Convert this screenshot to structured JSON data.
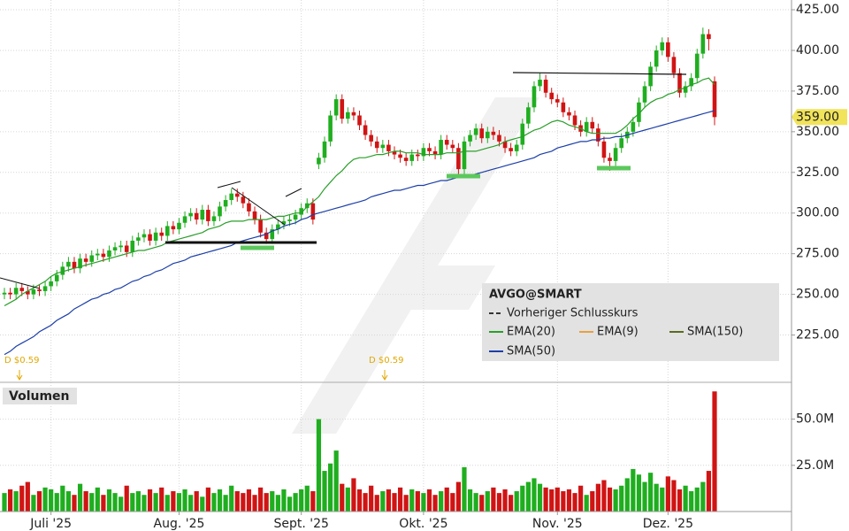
{
  "chart_data": {
    "type": "candlestick",
    "symbol": "AVGO@SMART",
    "categories": [
      null,
      null,
      null,
      null,
      null,
      null,
      null,
      null,
      "Juli '25",
      null,
      null,
      null,
      null,
      null,
      null,
      null,
      null,
      null,
      null,
      null,
      null,
      null,
      null,
      null,
      null,
      null,
      null,
      null,
      null,
      null,
      "Aug. '25",
      null,
      null,
      null,
      null,
      null,
      null,
      null,
      null,
      null,
      null,
      null,
      null,
      null,
      null,
      null,
      null,
      null,
      null,
      null,
      null,
      "Sept. '25",
      null,
      null,
      null,
      null,
      null,
      null,
      null,
      null,
      null,
      null,
      null,
      null,
      null,
      null,
      null,
      null,
      null,
      null,
      null,
      null,
      "Okt. '25",
      null,
      null,
      null,
      null,
      null,
      null,
      null,
      null,
      null,
      null,
      null,
      null,
      null,
      null,
      null,
      null,
      null,
      null,
      null,
      null,
      null,
      null,
      "Nov. '25",
      null,
      null,
      null,
      null,
      null,
      null,
      null,
      null,
      null,
      null,
      null,
      null,
      null,
      null,
      null,
      null,
      null,
      null,
      "Dez. '25",
      null,
      null,
      null,
      null,
      null,
      null,
      null,
      null
    ],
    "open": [
      250,
      251,
      250,
      254,
      252,
      250,
      253,
      252,
      255,
      258,
      262,
      267,
      270,
      266,
      272,
      270,
      274,
      275,
      273,
      277,
      279,
      280,
      276,
      283,
      285,
      287,
      283,
      288,
      286,
      292,
      290,
      294,
      298,
      300,
      296,
      302,
      295,
      298,
      304,
      308,
      312,
      310,
      306,
      301,
      296,
      288,
      284,
      290,
      293,
      295,
      296,
      299,
      303,
      306,
      330,
      334,
      344,
      360,
      370,
      358,
      362,
      360,
      354,
      348,
      344,
      340,
      342,
      338,
      336,
      334,
      332,
      336,
      335,
      340,
      338,
      336,
      345,
      342,
      340,
      327,
      344,
      348,
      352,
      346,
      350,
      348,
      344,
      340,
      338,
      342,
      355,
      365,
      378,
      382,
      374,
      370,
      368,
      362,
      360,
      354,
      350,
      356,
      352,
      344,
      334,
      332,
      340,
      346,
      350,
      356,
      368,
      378,
      390,
      400,
      405,
      396,
      386,
      374,
      378,
      383,
      398,
      410,
      381
    ],
    "high": [
      254,
      254,
      257,
      257,
      255,
      256,
      256,
      258,
      261,
      265,
      270,
      273,
      273,
      275,
      275,
      277,
      278,
      278,
      280,
      282,
      283,
      283,
      286,
      288,
      290,
      290,
      291,
      291,
      295,
      295,
      297,
      301,
      303,
      303,
      305,
      305,
      301,
      307,
      311,
      315,
      315,
      313,
      309,
      304,
      299,
      291,
      293,
      296,
      298,
      299,
      302,
      306,
      309,
      309,
      337,
      347,
      363,
      373,
      373,
      365,
      365,
      363,
      357,
      351,
      347,
      345,
      345,
      341,
      339,
      337,
      339,
      339,
      343,
      343,
      341,
      348,
      348,
      345,
      343,
      347,
      351,
      355,
      355,
      353,
      353,
      351,
      347,
      343,
      345,
      358,
      368,
      381,
      386,
      385,
      377,
      373,
      371,
      365,
      363,
      357,
      359,
      359,
      355,
      347,
      337,
      343,
      349,
      353,
      359,
      371,
      381,
      393,
      403,
      408,
      408,
      399,
      389,
      381,
      386,
      401,
      414,
      413,
      384
    ],
    "low": [
      247,
      247,
      247,
      249,
      247,
      247,
      249,
      249,
      252,
      255,
      259,
      264,
      263,
      263,
      267,
      267,
      271,
      270,
      270,
      274,
      276,
      273,
      273,
      280,
      282,
      280,
      280,
      283,
      283,
      287,
      287,
      291,
      295,
      293,
      293,
      292,
      292,
      295,
      301,
      305,
      307,
      303,
      298,
      293,
      285,
      281,
      281,
      287,
      290,
      292,
      293,
      296,
      300,
      293,
      327,
      331,
      341,
      357,
      355,
      355,
      357,
      351,
      345,
      341,
      337,
      337,
      335,
      333,
      331,
      329,
      329,
      332,
      332,
      335,
      333,
      333,
      339,
      337,
      324,
      324,
      341,
      345,
      343,
      343,
      345,
      341,
      337,
      335,
      335,
      339,
      352,
      362,
      375,
      371,
      367,
      365,
      359,
      357,
      351,
      347,
      347,
      349,
      341,
      331,
      326,
      329,
      337,
      343,
      347,
      353,
      365,
      375,
      387,
      397,
      393,
      383,
      371,
      371,
      375,
      380,
      395,
      400,
      354
    ],
    "close": [
      251,
      250,
      254,
      252,
      250,
      253,
      252,
      255,
      258,
      262,
      267,
      270,
      266,
      272,
      270,
      274,
      275,
      273,
      277,
      279,
      280,
      276,
      283,
      285,
      287,
      283,
      288,
      286,
      292,
      290,
      294,
      298,
      300,
      296,
      302,
      295,
      298,
      304,
      308,
      312,
      310,
      306,
      301,
      296,
      288,
      284,
      290,
      293,
      295,
      296,
      299,
      303,
      306,
      296,
      334,
      344,
      360,
      370,
      358,
      362,
      360,
      354,
      348,
      344,
      340,
      342,
      338,
      336,
      334,
      332,
      336,
      335,
      340,
      338,
      336,
      345,
      342,
      340,
      327,
      344,
      348,
      352,
      346,
      350,
      348,
      344,
      340,
      338,
      342,
      355,
      365,
      378,
      382,
      374,
      370,
      368,
      362,
      360,
      354,
      350,
      356,
      352,
      344,
      334,
      332,
      340,
      346,
      350,
      356,
      368,
      378,
      390,
      400,
      405,
      396,
      386,
      374,
      378,
      383,
      398,
      410,
      407,
      359
    ],
    "color_up": "#1fae1f",
    "color_down": "#d01414",
    "series": [
      {
        "name": "EMA(20)",
        "color": "#2a9e2a",
        "values": [
          243,
          245,
          247,
          250,
          252,
          254,
          256,
          258,
          261,
          263,
          264,
          265,
          266,
          267,
          268,
          269,
          270,
          271,
          272,
          273,
          274,
          275,
          276,
          277,
          277,
          278,
          279,
          280,
          282,
          283,
          284,
          285,
          286,
          287,
          288,
          290,
          291,
          292,
          294,
          295,
          295,
          295,
          296,
          296,
          296,
          296,
          297,
          298,
          298,
          299,
          300,
          300,
          304,
          307,
          310,
          315,
          319,
          323,
          326,
          330,
          333,
          334,
          334,
          335,
          336,
          336,
          337,
          338,
          338,
          337,
          337,
          337,
          336,
          336,
          336,
          336,
          337,
          337,
          337,
          338,
          338,
          338,
          339,
          340,
          341,
          342,
          344,
          345,
          346,
          347,
          349,
          351,
          352,
          354,
          356,
          357,
          356,
          354,
          353,
          352,
          350,
          349,
          349,
          349,
          349,
          349,
          351,
          354,
          358,
          361,
          365,
          368,
          370,
          371,
          373,
          374,
          376,
          377,
          379,
          380,
          382,
          383,
          379
        ]
      },
      {
        "name": "SMA(50)",
        "color": "#1c3fa8",
        "values": [
          213,
          215,
          218,
          220,
          222,
          224,
          227,
          229,
          231,
          234,
          236,
          238,
          241,
          243,
          245,
          247,
          248,
          250,
          251,
          253,
          254,
          256,
          258,
          259,
          261,
          262,
          264,
          265,
          267,
          269,
          270,
          271,
          273,
          274,
          275,
          276,
          277,
          278,
          279,
          280,
          282,
          283,
          284,
          285,
          286,
          287,
          289,
          290,
          292,
          293,
          294,
          296,
          297,
          299,
          300,
          301,
          302,
          303,
          304,
          305,
          306,
          307,
          308,
          310,
          311,
          312,
          313,
          314,
          314,
          315,
          316,
          317,
          317,
          318,
          319,
          320,
          320,
          321,
          322,
          323,
          323,
          324,
          325,
          326,
          327,
          328,
          329,
          330,
          331,
          332,
          333,
          334,
          336,
          337,
          338,
          340,
          341,
          342,
          343,
          344,
          344,
          345,
          345,
          346,
          346,
          347,
          347,
          348,
          349,
          350,
          351,
          352,
          353,
          354,
          355,
          356,
          357,
          358,
          359,
          360,
          361,
          362,
          363
        ]
      }
    ],
    "legend_extra": [
      {
        "name": "Vorheriger Schlusskurs",
        "color": "#333333"
      },
      {
        "name": "EMA(9)",
        "color": "#e8a040"
      },
      {
        "name": "SMA(150)",
        "color": "#5a6b1f"
      }
    ],
    "annotations": [
      "D $0.59",
      "D $0.59"
    ],
    "ylim": [
      197,
      431
    ],
    "yticks": [
      {
        "value": 225,
        "label": "225.00"
      },
      {
        "value": 250,
        "label": "250.00"
      },
      {
        "value": 275,
        "label": "275.00"
      },
      {
        "value": 300,
        "label": "300.00"
      },
      {
        "value": 325,
        "label": "325.00"
      },
      {
        "value": 350,
        "label": "350.00"
      },
      {
        "value": 375,
        "label": "375.00"
      },
      {
        "value": 400,
        "label": "400.00"
      },
      {
        "value": 425,
        "label": "425.00"
      }
    ],
    "last_price": {
      "value": 359,
      "label": "359.00"
    },
    "grid": true,
    "volume": {
      "title": "Volumen",
      "values": [
        10,
        12,
        11,
        14,
        16,
        9,
        11,
        13,
        12,
        10,
        14,
        11,
        9,
        15,
        11,
        10,
        13,
        9,
        12,
        10,
        8,
        14,
        10,
        11,
        9,
        12,
        10,
        13,
        9,
        11,
        10,
        12,
        9,
        11,
        8,
        13,
        10,
        12,
        9,
        14,
        11,
        10,
        12,
        9,
        13,
        10,
        11,
        9,
        12,
        8,
        10,
        12,
        14,
        11,
        50,
        22,
        26,
        33,
        15,
        13,
        18,
        12,
        10,
        14,
        9,
        11,
        12,
        10,
        13,
        9,
        12,
        11,
        10,
        12,
        9,
        11,
        13,
        10,
        16,
        24,
        12,
        10,
        9,
        11,
        13,
        10,
        12,
        9,
        11,
        14,
        16,
        18,
        15,
        13,
        12,
        13,
        11,
        12,
        10,
        14,
        9,
        11,
        15,
        17,
        13,
        12,
        14,
        18,
        23,
        20,
        16,
        21,
        15,
        13,
        19,
        17,
        12,
        14,
        11,
        13,
        16,
        22,
        65
      ],
      "ylim": [
        0,
        68
      ],
      "yticks": [
        {
          "value": 25,
          "label": "25.0M"
        },
        {
          "value": 50,
          "label": "50.0M"
        }
      ]
    }
  }
}
